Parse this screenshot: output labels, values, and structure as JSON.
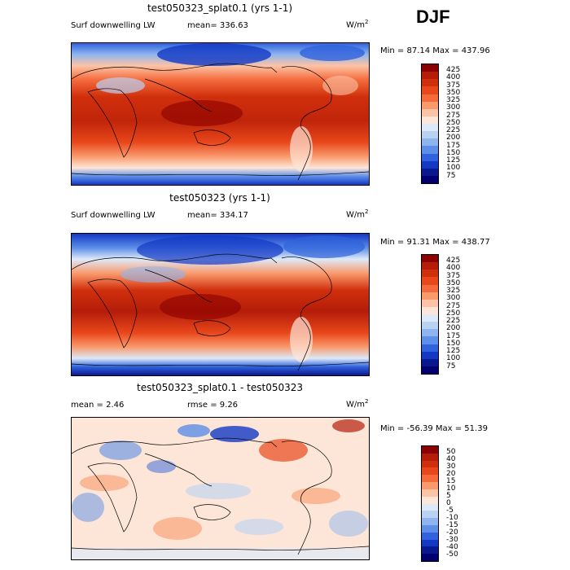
{
  "season": "DJF",
  "panels": [
    {
      "title": "test050323_splat0.1 (yrs 1-1)",
      "variable": "Surf downwelling LW",
      "mean": "mean= 336.63",
      "units": "W/m",
      "units_exp": "2",
      "minmax": "Min =  87.14 Max = 437.96",
      "colorbar": {
        "labels": [
          "425",
          "400",
          "375",
          "350",
          "325",
          "300",
          "275",
          "250",
          "225",
          "200",
          "175",
          "150",
          "125",
          "100",
          "75"
        ],
        "colors": [
          "#8b0000",
          "#b51d0a",
          "#d02f0c",
          "#e8471b",
          "#f46a3b",
          "#f99a6d",
          "#fcc3a5",
          "#fde6d8",
          "#dde9f8",
          "#b9d2f4",
          "#8fb5ef",
          "#5d8ee8",
          "#2f62dc",
          "#1238c4",
          "#0a1890",
          "#00006e"
        ]
      }
    },
    {
      "title": "test050323 (yrs 1-1)",
      "variable": "Surf downwelling LW",
      "mean": "mean= 334.17",
      "units": "W/m",
      "units_exp": "2",
      "minmax": "Min =  91.31 Max = 438.77",
      "colorbar": {
        "labels": [
          "425",
          "400",
          "375",
          "350",
          "325",
          "300",
          "275",
          "250",
          "225",
          "200",
          "175",
          "150",
          "125",
          "100",
          "75"
        ],
        "colors": [
          "#8b0000",
          "#b51d0a",
          "#d02f0c",
          "#e8471b",
          "#f46a3b",
          "#f99a6d",
          "#fcc3a5",
          "#fde6d8",
          "#dde9f8",
          "#b9d2f4",
          "#8fb5ef",
          "#5d8ee8",
          "#2f62dc",
          "#1238c4",
          "#0a1890",
          "#00006e"
        ]
      }
    },
    {
      "title": "test050323_splat0.1 - test050323",
      "mean": "mean =    2.46",
      "rmse": "rmse =   9.26",
      "units": "W/m",
      "units_exp": "2",
      "minmax": "Min = -56.39 Max =  51.39",
      "colorbar": {
        "labels": [
          "50",
          "40",
          "30",
          "20",
          "15",
          "10",
          "5",
          "0",
          "-5",
          "-10",
          "-15",
          "-20",
          "-30",
          "-40",
          "-50"
        ],
        "colors": [
          "#8b0000",
          "#b51d0a",
          "#d02f0c",
          "#e8471b",
          "#f46a3b",
          "#f99a6d",
          "#fcc3a5",
          "#fde6d8",
          "#dde9f8",
          "#b9d2f4",
          "#8fb5ef",
          "#5d8ee8",
          "#2f62dc",
          "#1238c4",
          "#0a1890",
          "#00006e"
        ]
      }
    }
  ]
}
